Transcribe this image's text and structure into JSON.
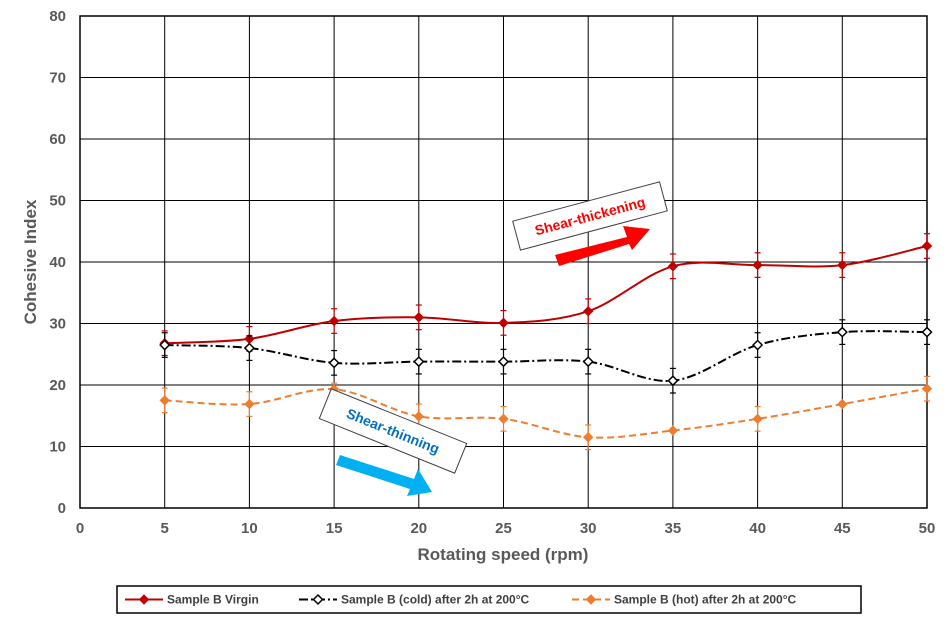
{
  "chart_data": {
    "type": "line",
    "title": "",
    "xlabel": "Rotating speed (rpm)",
    "ylabel": "Cohesive Index",
    "xlim": [
      0,
      50
    ],
    "ylim": [
      0,
      80
    ],
    "xticks": [
      0,
      5,
      10,
      15,
      20,
      25,
      30,
      35,
      40,
      45,
      50
    ],
    "yticks": [
      0,
      10,
      20,
      30,
      40,
      50,
      60,
      70,
      80
    ],
    "grid": true,
    "legend_position": "bottom",
    "series": [
      {
        "name": "Sample B Virgin",
        "color": "#c00000",
        "style": "solid",
        "marker": "diamond",
        "x": [
          5,
          10,
          15,
          20,
          25,
          30,
          35,
          40,
          45,
          50
        ],
        "values": [
          26.8,
          27.5,
          30.4,
          31.0,
          30.1,
          32.0,
          39.3,
          39.5,
          39.5,
          42.6
        ],
        "errors": [
          2.0,
          2.0,
          2.0,
          2.0,
          2.0,
          2.0,
          2.0,
          2.0,
          2.0,
          2.0
        ]
      },
      {
        "name": "Sample B (cold) after 2h at 200°C",
        "color": "#000000",
        "style": "dashdot",
        "marker": "diamond-open",
        "x": [
          5,
          10,
          15,
          20,
          25,
          30,
          35,
          40,
          45,
          50
        ],
        "values": [
          26.5,
          26.0,
          23.6,
          23.8,
          23.8,
          23.8,
          20.7,
          26.5,
          28.6,
          28.6
        ],
        "errors": [
          2.0,
          2.0,
          2.0,
          2.0,
          2.0,
          2.0,
          2.0,
          2.0,
          2.0,
          2.0
        ]
      },
      {
        "name": "Sample B (hot) after 2h at 200°C",
        "color": "#ed7d31",
        "style": "dashed",
        "marker": "diamond",
        "x": [
          5,
          10,
          15,
          20,
          25,
          30,
          35,
          40,
          45,
          50
        ],
        "values": [
          17.5,
          16.9,
          19.3,
          14.9,
          14.5,
          11.5,
          12.6,
          14.5,
          16.9,
          19.4
        ],
        "errors": [
          2.0,
          2.0,
          1.0,
          2.0,
          2.0,
          2.0,
          0,
          2.0,
          0,
          2.0
        ]
      }
    ],
    "annotations": [
      {
        "text": "Shear-thickening",
        "color": "#ff0000",
        "arrow_color": "#ff0000",
        "arrow_direction": "up-right"
      },
      {
        "text": "Shear-thinning",
        "color": "#0070c0",
        "arrow_color": "#00b0f0",
        "arrow_direction": "down-right"
      }
    ]
  }
}
